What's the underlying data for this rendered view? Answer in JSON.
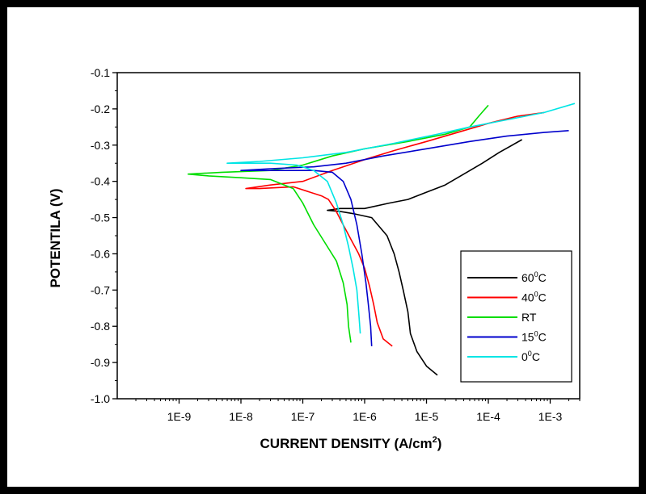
{
  "chart_data": {
    "type": "line",
    "xlabel": "CURRENT DENSITY (A/cm",
    "xlabel_sup": "2",
    "xlabel_end": ")",
    "ylabel": "POTENTILA (V)",
    "x_scale": "log",
    "xlim": [
      1e-10,
      0.003
    ],
    "ylim": [
      -1.0,
      -0.1
    ],
    "x_ticks": [
      {
        "value": 1e-09,
        "label": "1E-9"
      },
      {
        "value": 1e-08,
        "label": "1E-8"
      },
      {
        "value": 1e-07,
        "label": "1E-7"
      },
      {
        "value": 1e-06,
        "label": "1E-6"
      },
      {
        "value": 1e-05,
        "label": "1E-5"
      },
      {
        "value": 0.0001,
        "label": "1E-4"
      },
      {
        "value": 0.001,
        "label": "1E-3"
      }
    ],
    "y_ticks": [
      {
        "value": -0.1,
        "label": "-0.1"
      },
      {
        "value": -0.2,
        "label": "-0.2"
      },
      {
        "value": -0.3,
        "label": "-0.3"
      },
      {
        "value": -0.4,
        "label": "-0.4"
      },
      {
        "value": -0.5,
        "label": "-0.5"
      },
      {
        "value": -0.6,
        "label": "-0.6"
      },
      {
        "value": -0.7,
        "label": "-0.7"
      },
      {
        "value": -0.8,
        "label": "-0.8"
      },
      {
        "value": -0.9,
        "label": "-0.9"
      },
      {
        "value": -1.0,
        "label": "-1.0"
      }
    ],
    "grid": false,
    "legend_position": "right-middle",
    "series": [
      {
        "name": "60",
        "name_sup": "0",
        "name_suffix": "C",
        "color": "#000000",
        "points": [
          [
            1.5e-05,
            -0.935
          ],
          [
            1e-05,
            -0.91
          ],
          [
            7e-06,
            -0.87
          ],
          [
            5.5e-06,
            -0.82
          ],
          [
            5e-06,
            -0.76
          ],
          [
            4.2e-06,
            -0.7
          ],
          [
            3.6e-06,
            -0.65
          ],
          [
            3e-06,
            -0.6
          ],
          [
            2.3e-06,
            -0.55
          ],
          [
            1.3e-06,
            -0.5
          ],
          [
            7e-07,
            -0.49
          ],
          [
            4e-07,
            -0.483
          ],
          [
            2.5e-07,
            -0.48
          ],
          [
            4e-07,
            -0.475
          ],
          [
            1e-06,
            -0.475
          ],
          [
            2.5e-06,
            -0.46
          ],
          [
            5e-06,
            -0.45
          ],
          [
            1e-05,
            -0.43
          ],
          [
            2e-05,
            -0.41
          ],
          [
            4e-05,
            -0.38
          ],
          [
            8e-05,
            -0.35
          ],
          [
            0.00015,
            -0.32
          ],
          [
            0.00035,
            -0.285
          ]
        ]
      },
      {
        "name": "40",
        "name_sup": "0",
        "name_suffix": "C",
        "color": "#ff0000",
        "points": [
          [
            2.8e-06,
            -0.855
          ],
          [
            2e-06,
            -0.835
          ],
          [
            1.6e-06,
            -0.79
          ],
          [
            1.4e-06,
            -0.74
          ],
          [
            1.2e-06,
            -0.69
          ],
          [
            1e-06,
            -0.64
          ],
          [
            8e-07,
            -0.6
          ],
          [
            6e-07,
            -0.56
          ],
          [
            4.5e-07,
            -0.52
          ],
          [
            3.4e-07,
            -0.48
          ],
          [
            2.6e-07,
            -0.45
          ],
          [
            2e-07,
            -0.44
          ],
          [
            7e-08,
            -0.415
          ],
          [
            2e-08,
            -0.42
          ],
          [
            1.2e-08,
            -0.42
          ],
          [
            3e-08,
            -0.41
          ],
          [
            1e-07,
            -0.4
          ],
          [
            3e-07,
            -0.37
          ],
          [
            1e-06,
            -0.34
          ],
          [
            3e-06,
            -0.315
          ],
          [
            1e-05,
            -0.29
          ],
          [
            4e-05,
            -0.26
          ],
          [
            0.0001,
            -0.24
          ],
          [
            0.0003,
            -0.22
          ],
          [
            0.0008,
            -0.21
          ]
        ]
      },
      {
        "name": "RT",
        "name_sup": "",
        "name_suffix": "",
        "color": "#00dd00",
        "points": [
          [
            6e-07,
            -0.845
          ],
          [
            5.5e-07,
            -0.8
          ],
          [
            5.2e-07,
            -0.74
          ],
          [
            4.5e-07,
            -0.68
          ],
          [
            3.5e-07,
            -0.62
          ],
          [
            2.5e-07,
            -0.58
          ],
          [
            1.5e-07,
            -0.52
          ],
          [
            1e-07,
            -0.46
          ],
          [
            7e-08,
            -0.42
          ],
          [
            3e-08,
            -0.395
          ],
          [
            1e-08,
            -0.39
          ],
          [
            3e-09,
            -0.385
          ],
          [
            1.4e-09,
            -0.38
          ],
          [
            5e-09,
            -0.375
          ],
          [
            3e-08,
            -0.37
          ],
          [
            1e-07,
            -0.355
          ],
          [
            3e-07,
            -0.33
          ],
          [
            1e-06,
            -0.31
          ],
          [
            5e-06,
            -0.29
          ],
          [
            2e-05,
            -0.27
          ],
          [
            5e-05,
            -0.25
          ],
          [
            7e-05,
            -0.22
          ],
          [
            0.0001,
            -0.19
          ]
        ]
      },
      {
        "name": "15",
        "name_sup": "0",
        "name_suffix": "C",
        "color": "#0000cc",
        "points": [
          [
            1.3e-06,
            -0.855
          ],
          [
            1.25e-06,
            -0.8
          ],
          [
            1.15e-06,
            -0.74
          ],
          [
            1.05e-06,
            -0.68
          ],
          [
            9e-07,
            -0.6
          ],
          [
            7.5e-07,
            -0.52
          ],
          [
            6e-07,
            -0.45
          ],
          [
            4.5e-07,
            -0.4
          ],
          [
            3e-07,
            -0.375
          ],
          [
            1.5e-07,
            -0.37
          ],
          [
            6e-08,
            -0.37
          ],
          [
            1e-08,
            -0.37
          ],
          [
            3e-08,
            -0.365
          ],
          [
            1.5e-07,
            -0.36
          ],
          [
            5e-07,
            -0.35
          ],
          [
            2e-06,
            -0.33
          ],
          [
            1e-05,
            -0.31
          ],
          [
            5e-05,
            -0.29
          ],
          [
            0.0002,
            -0.275
          ],
          [
            0.0008,
            -0.265
          ],
          [
            0.002,
            -0.26
          ]
        ]
      },
      {
        "name": "0",
        "name_sup": "0",
        "name_suffix": "C",
        "color": "#00e5e5",
        "points": [
          [
            8.5e-07,
            -0.82
          ],
          [
            8e-07,
            -0.76
          ],
          [
            7.5e-07,
            -0.7
          ],
          [
            6.5e-07,
            -0.64
          ],
          [
            5.5e-07,
            -0.58
          ],
          [
            4.5e-07,
            -0.52
          ],
          [
            3.5e-07,
            -0.46
          ],
          [
            2.5e-07,
            -0.4
          ],
          [
            1.5e-07,
            -0.37
          ],
          [
            8e-08,
            -0.355
          ],
          [
            3e-08,
            -0.35
          ],
          [
            6e-09,
            -0.35
          ],
          [
            2e-08,
            -0.345
          ],
          [
            1e-07,
            -0.335
          ],
          [
            5e-07,
            -0.32
          ],
          [
            3e-06,
            -0.295
          ],
          [
            1.5e-05,
            -0.27
          ],
          [
            5e-05,
            -0.25
          ],
          [
            0.0002,
            -0.23
          ],
          [
            0.0008,
            -0.21
          ],
          [
            0.0025,
            -0.185
          ]
        ]
      }
    ]
  }
}
